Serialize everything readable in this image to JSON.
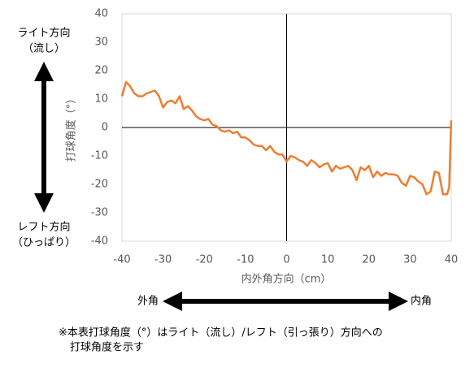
{
  "chart_data": {
    "type": "line",
    "y_label": "打球角度（°）",
    "x_label": "内外角方向（cm）",
    "left_top_label": [
      "ライト方向",
      "（流し）"
    ],
    "left_bottom_label": [
      "レフト方向",
      "（ひっぱり）"
    ],
    "x_arrow_left": "外角",
    "x_arrow_right": "内角",
    "note": [
      "※本表打球角度（°）はライト（流し）/レフト（引っ張り）方向への",
      "打球角度を示す"
    ],
    "xlim": [
      -40,
      40
    ],
    "xticks": [
      -40,
      -30,
      -20,
      -10,
      0,
      10,
      20,
      30,
      40
    ],
    "ylim": [
      -40,
      40
    ],
    "yticks": [
      -40,
      -30,
      -20,
      -10,
      0,
      10,
      20,
      30,
      40
    ],
    "color": "#ed7d31",
    "x": [
      -40,
      -39,
      -38,
      -37,
      -36,
      -35,
      -34,
      -33,
      -32,
      -31,
      -30,
      -29,
      -28,
      -27,
      -26,
      -25,
      -24,
      -23,
      -22,
      -21,
      -20,
      -19,
      -18,
      -17,
      -16,
      -15,
      -14,
      -13,
      -12,
      -11,
      -10,
      -9,
      -8,
      -7,
      -6,
      -5,
      -4,
      -3,
      -2,
      -1,
      0,
      1,
      2,
      3,
      4,
      5,
      6,
      7,
      8,
      9,
      10,
      11,
      12,
      13,
      14,
      15,
      16,
      17,
      18,
      19,
      20,
      21,
      22,
      23,
      24,
      25,
      26,
      27,
      28,
      29,
      30,
      31,
      32,
      33,
      34,
      35,
      36,
      37,
      38,
      39,
      39.5,
      40
    ],
    "values": [
      11,
      16,
      14.5,
      12,
      11,
      11,
      12,
      12.5,
      13,
      11,
      7,
      9,
      9.5,
      8.5,
      11,
      6.5,
      7.5,
      6,
      4,
      3,
      2.5,
      3,
      1,
      0.5,
      -1,
      -1.5,
      -1,
      -2,
      -1.5,
      -3.5,
      -3.5,
      -4.5,
      -6,
      -6.5,
      -6.5,
      -8,
      -6.5,
      -8.5,
      -9.5,
      -9.5,
      -12,
      -10,
      -10.5,
      -11.5,
      -12,
      -13.5,
      -11.5,
      -12.5,
      -14,
      -13,
      -12.5,
      -15.5,
      -13.5,
      -14.5,
      -14,
      -13.5,
      -15,
      -18.5,
      -14,
      -15,
      -13.5,
      -17.5,
      -15.5,
      -17,
      -16,
      -16.5,
      -16.5,
      -17,
      -19.5,
      -20.5,
      -17,
      -17.5,
      -19,
      -20,
      -23.5,
      -22.5,
      -15.5,
      -16,
      -23.5,
      -23.5,
      -21,
      2.5
    ]
  }
}
